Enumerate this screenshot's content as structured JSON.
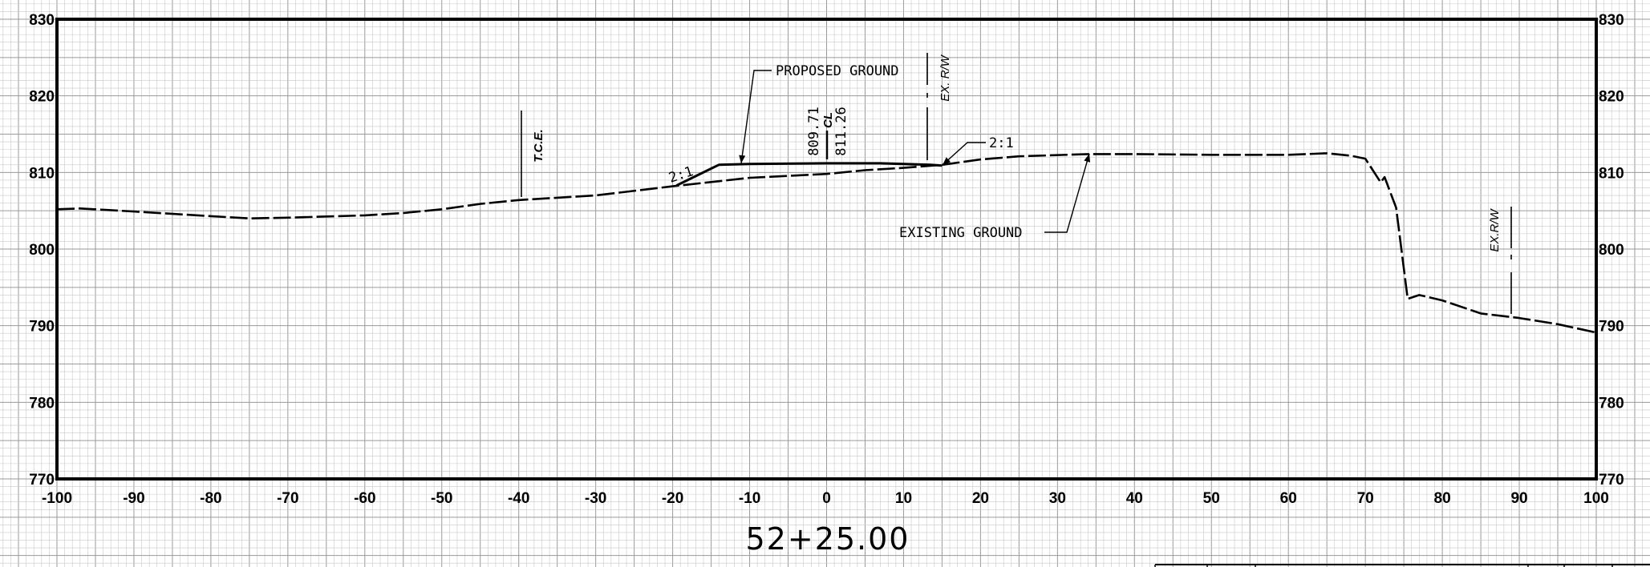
{
  "chart_data": {
    "type": "line",
    "title": "52+25.00",
    "xlim": [
      -100,
      100
    ],
    "ylim": [
      770,
      830
    ],
    "x_ticks": [
      "-100",
      "-90",
      "-80",
      "-70",
      "-60",
      "-50",
      "-40",
      "-30",
      "-20",
      "-10",
      "0",
      "10",
      "20",
      "30",
      "40",
      "50",
      "60",
      "70",
      "80",
      "90",
      "100"
    ],
    "y_ticks": [
      "770",
      "780",
      "790",
      "800",
      "810",
      "820",
      "830"
    ],
    "grid": true,
    "series": [
      {
        "name": "EXISTING GROUND",
        "style": "dashed",
        "points": [
          [
            -100,
            805.2
          ],
          [
            -97,
            805.3
          ],
          [
            -90,
            804.9
          ],
          [
            -80,
            804.3
          ],
          [
            -75,
            804.0
          ],
          [
            -70,
            804.1
          ],
          [
            -60,
            804.4
          ],
          [
            -55,
            804.7
          ],
          [
            -50,
            805.2
          ],
          [
            -45,
            805.9
          ],
          [
            -40,
            806.4
          ],
          [
            -30,
            807.0
          ],
          [
            -20,
            808.2
          ],
          [
            -10,
            809.3
          ],
          [
            0,
            809.8
          ],
          [
            5,
            810.3
          ],
          [
            10,
            810.6
          ],
          [
            15,
            811.0
          ],
          [
            20,
            811.7
          ],
          [
            25,
            812.1
          ],
          [
            34,
            812.4
          ],
          [
            40,
            812.4
          ],
          [
            50,
            812.3
          ],
          [
            60,
            812.3
          ],
          [
            65,
            812.5
          ],
          [
            68,
            812.2
          ],
          [
            70,
            811.8
          ],
          [
            72,
            808.7
          ],
          [
            72.5,
            809.4
          ],
          [
            74,
            805.4
          ],
          [
            75.5,
            793.5
          ],
          [
            77,
            794.0
          ],
          [
            80,
            793.3
          ],
          [
            85,
            791.6
          ],
          [
            90,
            791.0
          ],
          [
            95,
            790.2
          ],
          [
            100,
            789.1
          ]
        ]
      },
      {
        "name": "PROPOSED GROUND",
        "style": "solid",
        "points": [
          [
            -19.5,
            808.3
          ],
          [
            -14,
            811.0
          ],
          [
            -10,
            811.1
          ],
          [
            0,
            811.2
          ],
          [
            7,
            811.2
          ],
          [
            13.5,
            811.0
          ],
          [
            15,
            810.9
          ]
        ]
      }
    ],
    "annotations": {
      "proposed_ground": "PROPOSED GROUND",
      "existing_ground": "EXISTING GROUND",
      "slope_left": "2:1",
      "slope_right": "2:1",
      "tce": "T.C.E.",
      "cl": "CL",
      "elev_existing": "809.71",
      "elev_proposed": "811.26",
      "rw_center": "EX. R/W",
      "rw_right": "EX.R/W"
    }
  },
  "colors": {
    "ink": "#000000",
    "grid_minor": "#c8c8c8",
    "grid_major": "#9a9a9a",
    "background": "#ffffff"
  }
}
